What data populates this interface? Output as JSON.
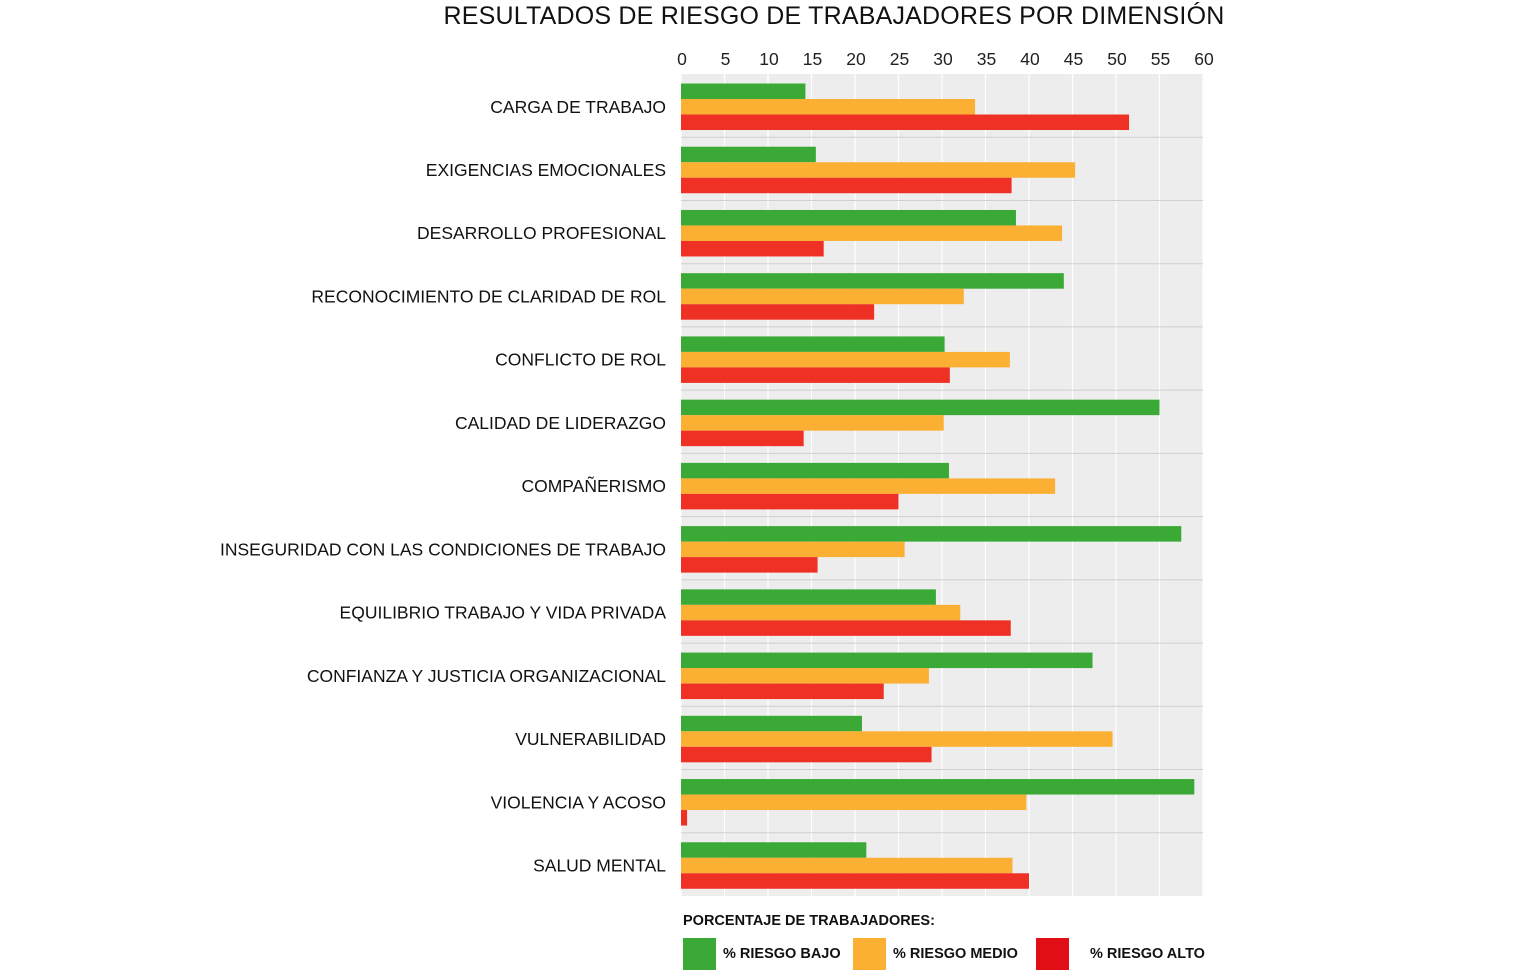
{
  "chart_data": {
    "type": "bar",
    "orientation": "horizontal",
    "title": "RESULTADOS DE RIESGO DE TRABAJADORES POR DIMENSIÓN",
    "xlim": [
      0,
      60
    ],
    "xticks": [
      0,
      5,
      10,
      15,
      20,
      25,
      30,
      35,
      40,
      45,
      50,
      55,
      60
    ],
    "xaxis_position": "top",
    "grid": true,
    "categories": [
      "CARGA DE TRABAJO",
      "EXIGENCIAS EMOCIONALES",
      "DESARROLLO PROFESIONAL",
      "RECONOCIMIENTO DE CLARIDAD DE ROL",
      "CONFLICTO DE ROL",
      "CALIDAD DE LIDERAZGO",
      "COMPAÑERISMO",
      "INSEGURIDAD CON LAS CONDICIONES DE TRABAJO",
      "EQUILIBRIO TRABAJO Y VIDA PRIVADA",
      "CONFIANZA Y JUSTICIA ORGANIZACIONAL",
      "VULNERABILIDAD",
      "VIOLENCIA Y ACOSO",
      "SALUD MENTAL"
    ],
    "series": [
      {
        "name": "% RIESGO BAJO",
        "color": "#3aa935",
        "values": [
          14.3,
          15.5,
          38.5,
          44,
          30.3,
          55,
          30.8,
          57.5,
          29.3,
          47.3,
          20.8,
          59,
          21.3
        ]
      },
      {
        "name": "% RIESGO MEDIO",
        "color": "#fbb034",
        "values": [
          33.8,
          45.3,
          43.8,
          32.5,
          37.8,
          30.2,
          43,
          25.7,
          32.1,
          28.5,
          49.6,
          39.7,
          38.1
        ]
      },
      {
        "name": "% RIESGO ALTO",
        "color": "#ee3124",
        "values": [
          51.5,
          38,
          16.4,
          22.2,
          30.9,
          14.1,
          25,
          15.7,
          37.9,
          23.3,
          28.8,
          0.7,
          40
        ]
      }
    ],
    "legend": {
      "title": "PORCENTAJE DE TRABAJADORES:",
      "placement": "bottom",
      "swatch_colors": [
        "#3aa935",
        "#fbb034",
        "#e20e17"
      ]
    },
    "plot_background": "#ededed",
    "grid_color": "#ffffff"
  }
}
